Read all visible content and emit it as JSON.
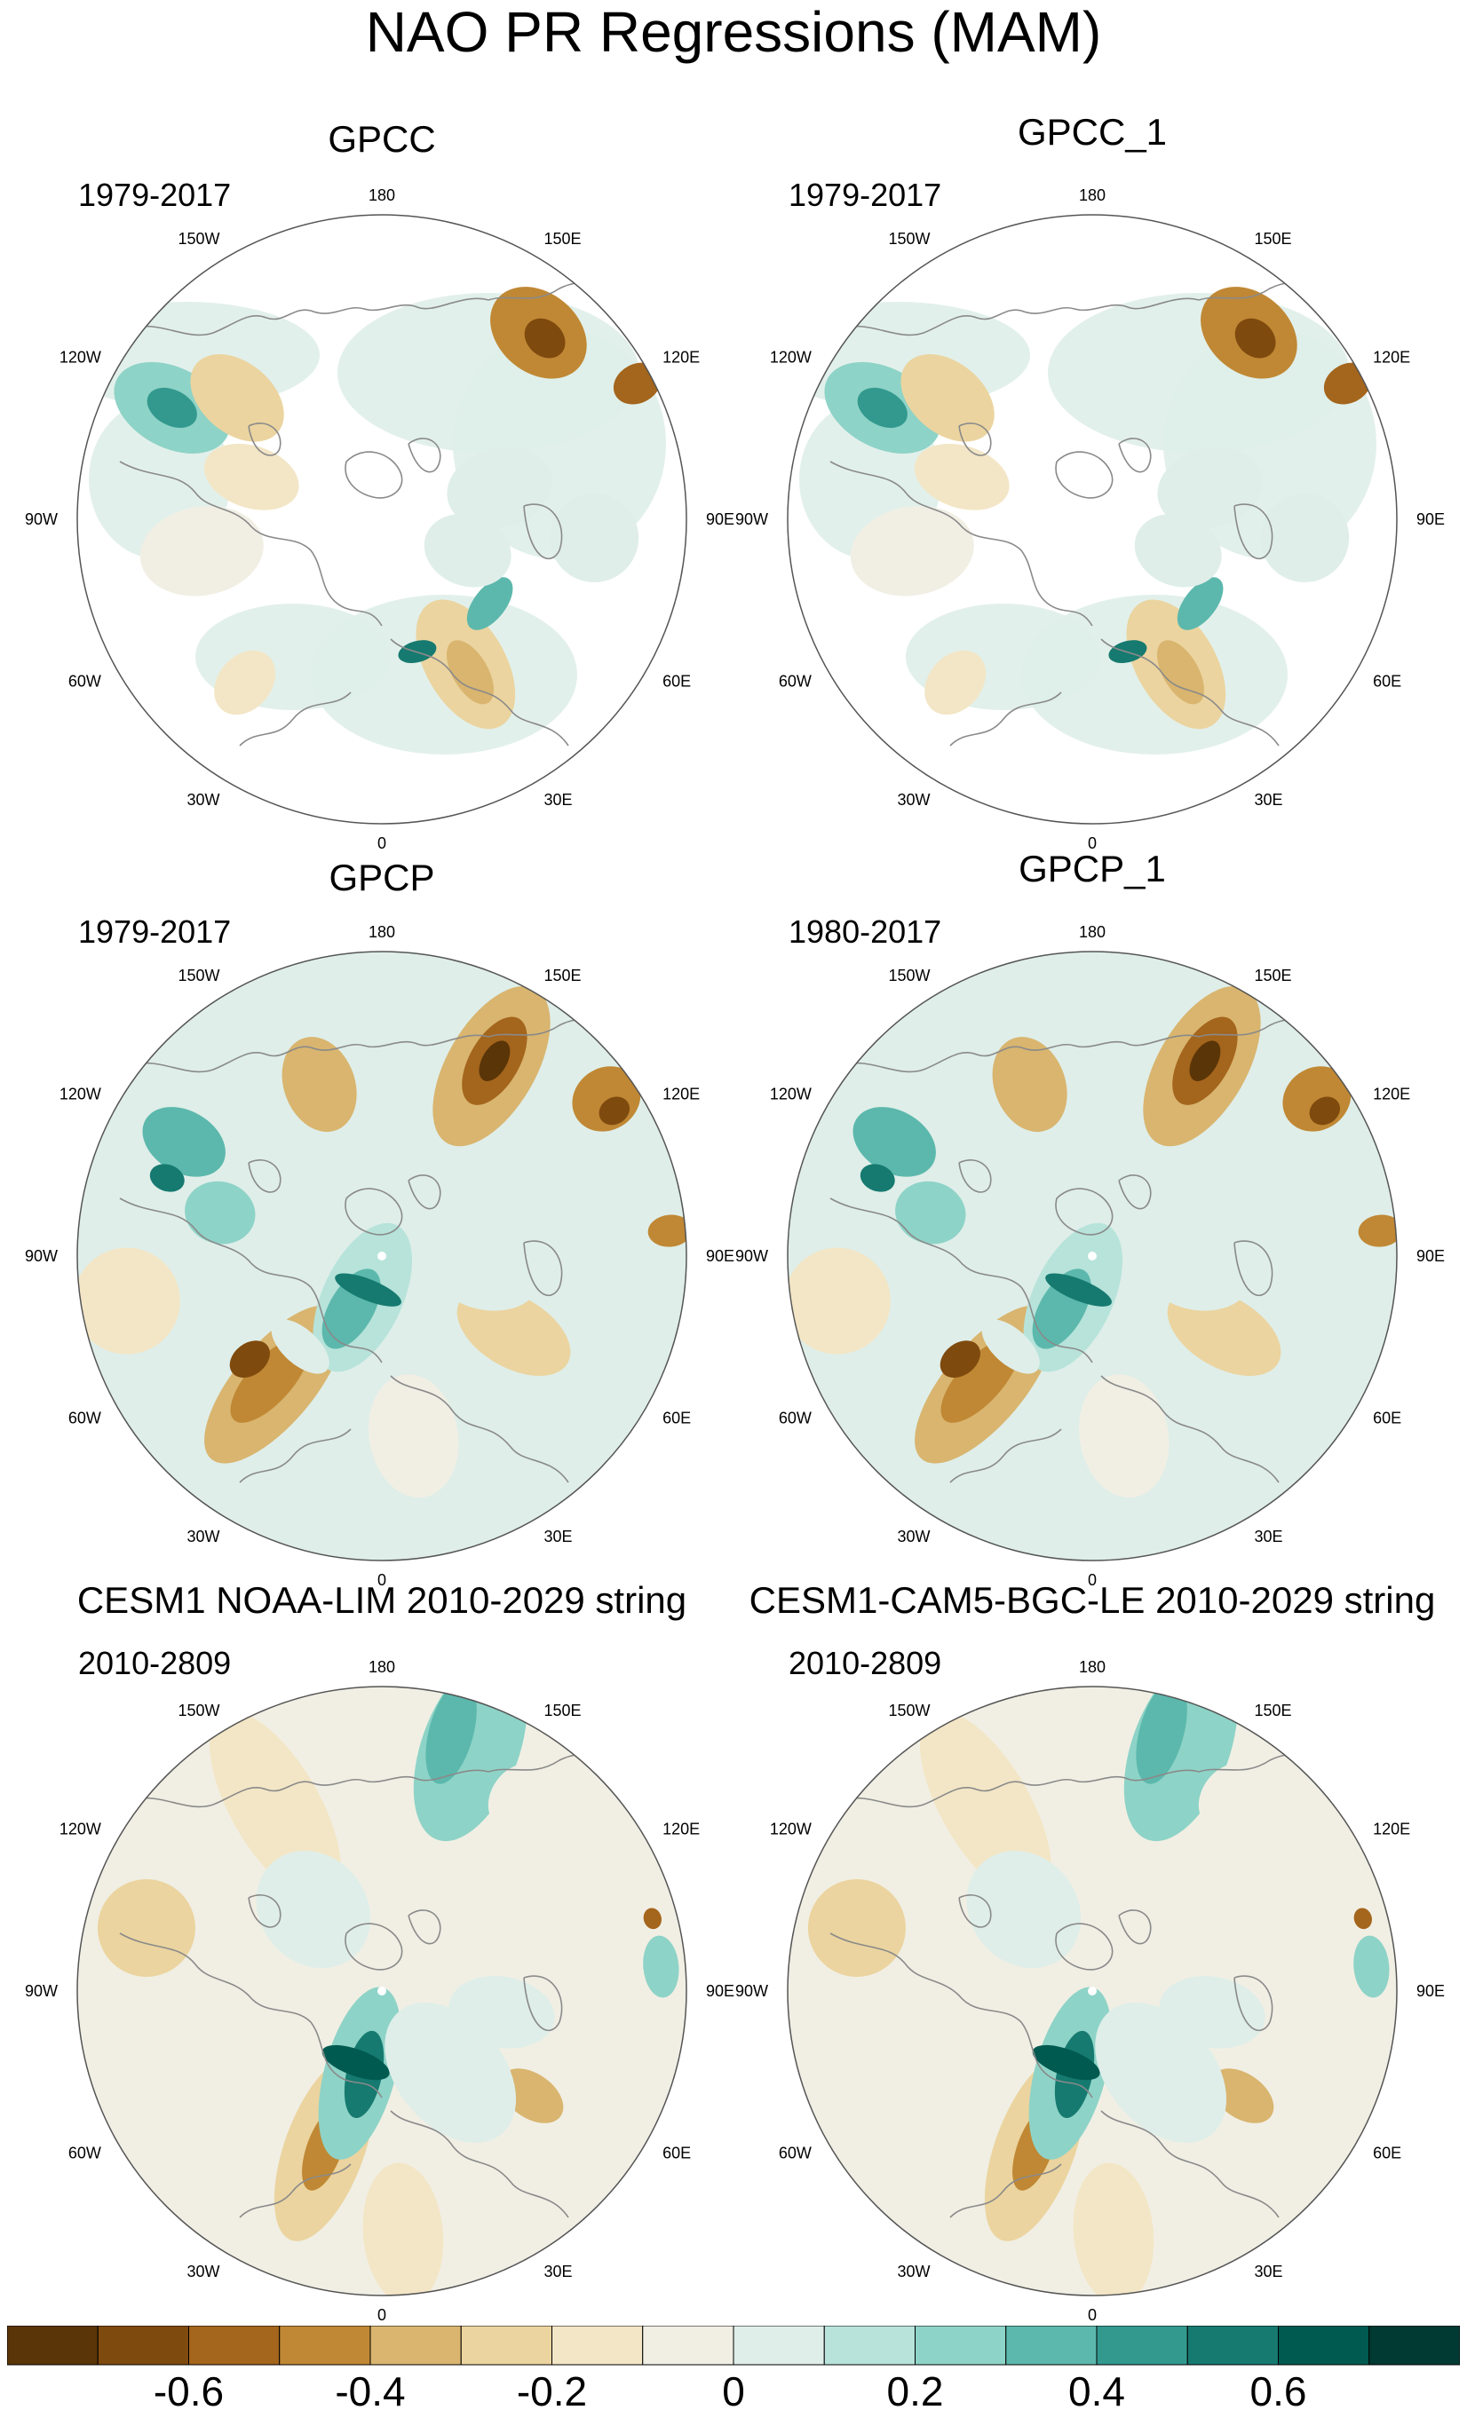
{
  "title": "NAO PR Regressions (MAM)",
  "colors": {
    "land_outline": "#8a8a8a",
    "map_edge": "#555555",
    "palette": [
      "#5a3508",
      "#7f4a0e",
      "#a4651c",
      "#c08834",
      "#d9b56f",
      "#ebd49f",
      "#f3e6c6",
      "#f1efe4",
      "#dfeee9",
      "#b7e3da",
      "#8ed3c7",
      "#5cb8ac",
      "#33998f",
      "#167a70",
      "#005a50",
      "#003a33"
    ]
  },
  "panels": [
    {
      "title": "GPCC",
      "period": "1979-2017"
    },
    {
      "title": "GPCC_1",
      "period": "1979-2017"
    },
    {
      "title": "GPCP",
      "period": "1979-2017"
    },
    {
      "title": "GPCP_1",
      "period": "1980-2017"
    },
    {
      "title": "CESM1 NOAA-LIM 2010-2029 string",
      "period": "2010-2809"
    },
    {
      "title": "CESM1-CAM5-BGC-LE 2010-2029 string",
      "period": "2010-2809"
    }
  ],
  "longitude_labels": [
    "180",
    "150E",
    "120E",
    "90E",
    "60E",
    "30E",
    "0",
    "30W",
    "60W",
    "90W",
    "120W",
    "150W"
  ],
  "chart_data": {
    "type": "heatmap",
    "projection": "north-polar-stereographic",
    "variable": "precipitation regression onto NAO",
    "season": "MAM",
    "colorbar": {
      "levels": [
        -0.7,
        -0.6,
        -0.5,
        -0.4,
        -0.3,
        -0.2,
        -0.1,
        0,
        0.1,
        0.2,
        0.3,
        0.4,
        0.5,
        0.6,
        0.7
      ],
      "tick_values": [
        -0.6,
        -0.4,
        -0.2,
        0,
        0.2,
        0.4,
        0.6
      ],
      "tick_labels": [
        "-0.6",
        "-0.4",
        "-0.2",
        "0",
        "0.2",
        "0.4",
        "0.6"
      ],
      "range": [
        -0.8,
        0.8
      ]
    },
    "panels": [
      {
        "name": "GPCC",
        "period": "1979-2017",
        "coverage": "land only"
      },
      {
        "name": "GPCC_1",
        "period": "1979-2017",
        "coverage": "land only"
      },
      {
        "name": "GPCP",
        "period": "1979-2017",
        "coverage": "global"
      },
      {
        "name": "GPCP_1",
        "period": "1980-2017",
        "coverage": "global"
      },
      {
        "name": "CESM1 NOAA-LIM 2010-2029 string",
        "period": "2010-2809",
        "coverage": "global"
      },
      {
        "name": "CESM1-CAM5-BGC-LE 2010-2029 string",
        "period": "2010-2809",
        "coverage": "global"
      }
    ]
  }
}
